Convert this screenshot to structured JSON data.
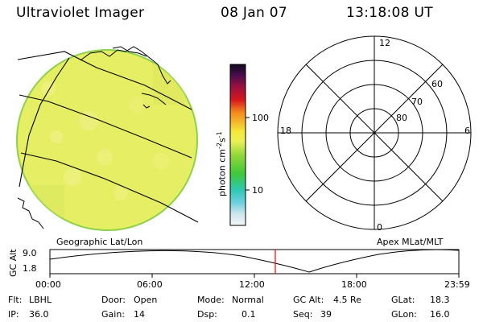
{
  "header": {
    "instrument": "Ultraviolet Imager",
    "date": "08 Jan 07",
    "time": "13:18:08 UT"
  },
  "left_panel": {
    "label": "Geographic Lat/Lon"
  },
  "right_panel": {
    "label": "Apex MLat/MLT",
    "mlt_labels": [
      "12",
      "18",
      "6",
      "0"
    ],
    "lat_labels": [
      "60",
      "70",
      "80"
    ]
  },
  "colorbar": {
    "unit_label": "photon cm",
    "unit_sup1": "-2",
    "unit_mid": "s",
    "unit_sup2": "-1",
    "ticks": [
      "100",
      "10"
    ],
    "scale": "log"
  },
  "altitude_plot": {
    "ylabel": "GC Alt",
    "y_ticks": [
      "9.0",
      "1.8"
    ],
    "x_ticks": [
      "00:00",
      "06:00",
      "12:00",
      "18:00",
      "23:59"
    ],
    "current_time_marker": "13:18"
  },
  "status": {
    "flt_label": "Flt:",
    "flt_value": "LBHL",
    "ip_label": "IP:",
    "ip_value": "36.0",
    "door_label": "Door:",
    "door_value": "Open",
    "gain_label": "Gain:",
    "gain_value": "14",
    "mode_label": "Mode:",
    "mode_value": "Normal",
    "dsp_label": "Dsp:",
    "dsp_value": "0.1",
    "gcalt_label": "GC Alt:",
    "gcalt_value": "4.5 Re",
    "seq_label": "Seq:",
    "seq_value": "39",
    "glat_label": "GLat:",
    "glat_value": "18.3",
    "glon_label": "GLon:",
    "glon_value": "16.0"
  },
  "colors": {
    "disk_fill": "#e6ee64",
    "disk_edge": "#8ed24a",
    "marker": "#ff0000"
  }
}
